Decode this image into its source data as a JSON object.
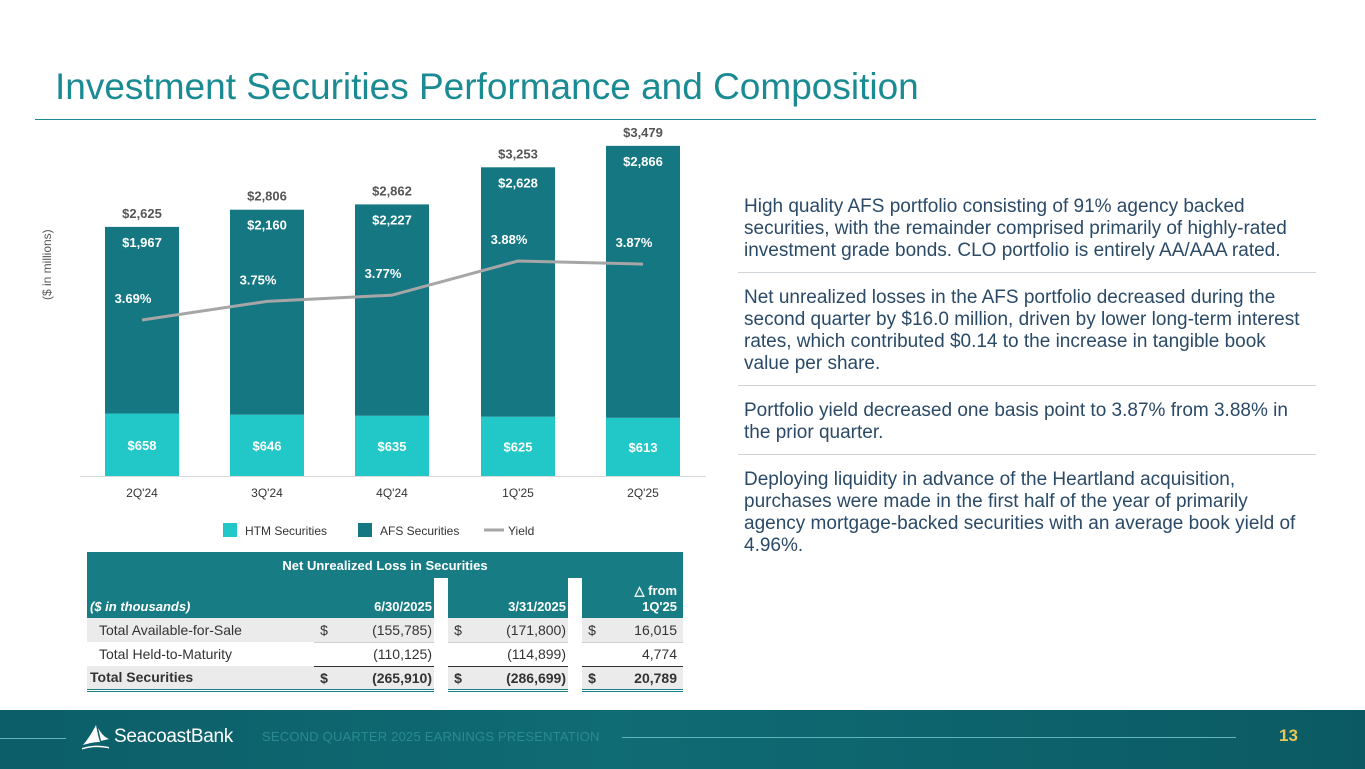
{
  "title": "Investment Securities Performance and Composition",
  "chart_data": {
    "type": "bar",
    "stacked": true,
    "ylabel": "($ in millions)",
    "categories": [
      "2Q'24",
      "3Q'24",
      "4Q'24",
      "1Q'25",
      "2Q'25"
    ],
    "series": [
      {
        "name": "HTM Securities",
        "values": [
          658,
          646,
          635,
          625,
          613
        ],
        "labels": [
          "$658",
          "$646",
          "$635",
          "$625",
          "$613"
        ],
        "color": "#22c7c8"
      },
      {
        "name": "AFS Securities",
        "values": [
          1967,
          2160,
          2227,
          2628,
          2866
        ],
        "labels": [
          "$1,967",
          "$2,160",
          "$2,227",
          "$2,628",
          "$2,866"
        ],
        "color": "#147782"
      },
      {
        "name": "Yield",
        "type": "line",
        "values": [
          3.69,
          3.75,
          3.77,
          3.88,
          3.87
        ],
        "labels": [
          "3.69%",
          "3.75%",
          "3.77%",
          "3.88%",
          "3.87%"
        ],
        "color": "#a6a6a6"
      }
    ],
    "totals": [
      2625,
      2806,
      2862,
      3253,
      3479
    ],
    "total_labels": [
      "$2,625",
      "$2,806",
      "$2,862",
      "$3,253",
      "$3,479"
    ],
    "legend": [
      "HTM Securities",
      "AFS Securities",
      "Yield"
    ],
    "legend_position": "bottom"
  },
  "bullets": [
    "High quality AFS portfolio consisting of 91% agency backed securities, with the remainder comprised primarily of highly-rated investment grade bonds. CLO portfolio is entirely AA/AAA rated.",
    "Net unrealized losses in the AFS portfolio decreased during the second quarter by $16.0 million, driven by lower long-term interest rates, which contributed $0.14 to the increase in tangible book value per share.",
    "Portfolio yield decreased one basis point to 3.87% from 3.88% in the prior quarter.",
    "Deploying liquidity in advance of the Heartland acquisition, purchases were made in the first half of the year of primarily agency mortgage-backed securities with an average book yield of 4.96%."
  ],
  "table": {
    "title": "Net Unrealized Loss in Securities",
    "unit_label": "($ in thousands)",
    "col1": "6/30/2025",
    "col2": "3/31/2025",
    "col3": "△ from 1Q'25",
    "rows": [
      {
        "label": "Total Available-for-Sale",
        "s1": "$",
        "v1": "(155,785)",
        "s2": "$",
        "v2": "(171,800)",
        "s3": "$",
        "v3": "16,015"
      },
      {
        "label": "Total Held-to-Maturity",
        "s1": "",
        "v1": "(110,125)",
        "s2": "",
        "v2": "(114,899)",
        "s3": "",
        "v3": "4,774"
      },
      {
        "label": "Total Securities",
        "s1": "$",
        "v1": "(265,910)",
        "s2": "$",
        "v2": "(286,699)",
        "s3": "$",
        "v3": "20,789"
      }
    ]
  },
  "footer": {
    "logo_text": "SeacoastBank",
    "subtitle": "SECOND QUARTER 2025 EARNINGS PRESENTATION",
    "page": "13"
  },
  "colors": {
    "accent": "#1a8a93",
    "htm": "#22c7c8",
    "afs": "#147782",
    "yield": "#a6a6a6",
    "page_number": "#e6c75a"
  }
}
